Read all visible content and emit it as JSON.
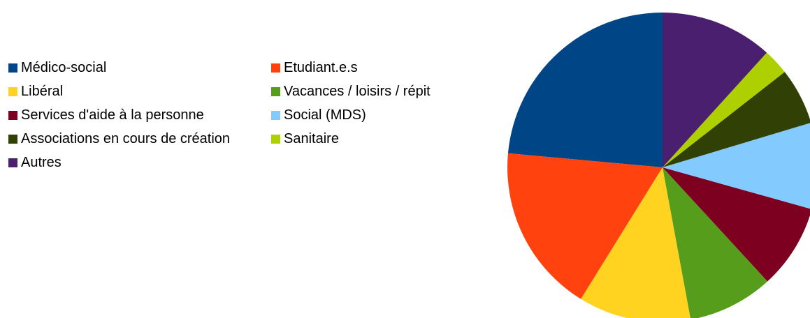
{
  "chart_data": {
    "type": "pie",
    "categories": [
      "Médico-social",
      "Etudiant.e.s",
      "Libéral",
      "Vacances / loisirs / répit",
      "Services d'aide à la personne",
      "Social (MDS)",
      "Associations en cours de création",
      "Sanitaire",
      "Autres"
    ],
    "values": [
      23.5,
      17.6,
      11.7,
      8.9,
      8.8,
      9.0,
      5.9,
      2.7,
      11.7
    ],
    "colors": [
      "#004586",
      "#ff420e",
      "#ffd320",
      "#579d1c",
      "#7e0021",
      "#83caff",
      "#314004",
      "#aecf00",
      "#4b1f6f"
    ],
    "direction": "counterclockwise",
    "legend": "left"
  }
}
